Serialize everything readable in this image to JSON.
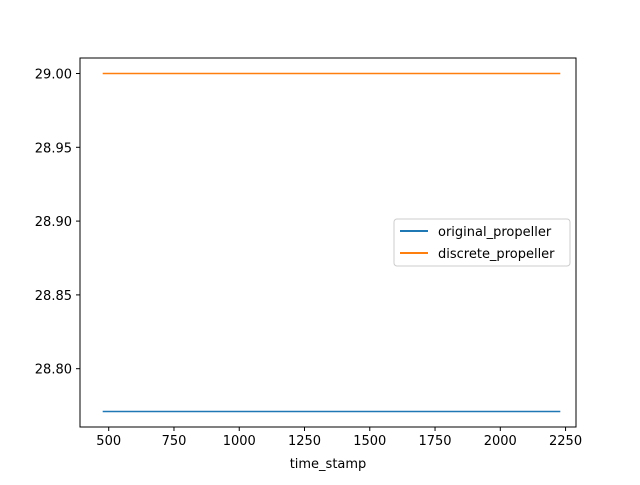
{
  "chart_data": {
    "type": "line",
    "title": "",
    "xlabel": "time_stamp",
    "ylabel": "",
    "xlim": [
      390,
      2290
    ],
    "ylim": [
      28.7605,
      29.0105
    ],
    "xticks": [
      500,
      750,
      1000,
      1250,
      1500,
      1750,
      2000,
      2250
    ],
    "xtick_labels": [
      "500",
      "750",
      "1000",
      "1250",
      "1500",
      "1750",
      "2000",
      "2250"
    ],
    "yticks": [
      28.8,
      28.85,
      28.9,
      28.95,
      29.0
    ],
    "ytick_labels": [
      "28.80",
      "28.85",
      "28.90",
      "28.95",
      "29.00"
    ],
    "grid": false,
    "legend_position": "center-right",
    "series": [
      {
        "name": "original_propeller",
        "color": "#1f77b4",
        "x": [
          477,
          2230
        ],
        "y": [
          28.771,
          28.771
        ]
      },
      {
        "name": "discrete_propeller",
        "color": "#ff7f0e",
        "x": [
          477,
          2230
        ],
        "y": [
          29.0,
          29.0
        ]
      }
    ]
  }
}
